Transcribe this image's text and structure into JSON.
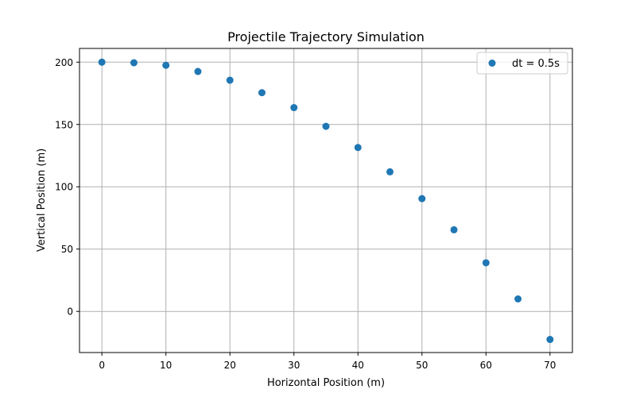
{
  "chart_data": {
    "type": "scatter",
    "title": "Projectile Trajectory Simulation",
    "xlabel": "Horizontal Position (m)",
    "ylabel": "Vertical Position (m)",
    "xlim": [
      -3.5,
      73.5
    ],
    "ylim": [
      -33,
      211
    ],
    "xticks": [
      0,
      10,
      20,
      30,
      40,
      50,
      60,
      70
    ],
    "yticks": [
      0,
      50,
      100,
      150,
      200
    ],
    "grid": true,
    "legend_position": "top-right",
    "series": [
      {
        "name": "dt = 0.5s",
        "color": "#1f77b4",
        "x": [
          0,
          5,
          10,
          15,
          20,
          25,
          30,
          35,
          40,
          45,
          50,
          55,
          60,
          65,
          70
        ],
        "y": [
          200,
          199.5,
          197.5,
          192.5,
          185.5,
          175.5,
          163.5,
          148.5,
          131.5,
          112,
          90.5,
          65.5,
          39,
          10,
          -22.5
        ]
      }
    ]
  }
}
